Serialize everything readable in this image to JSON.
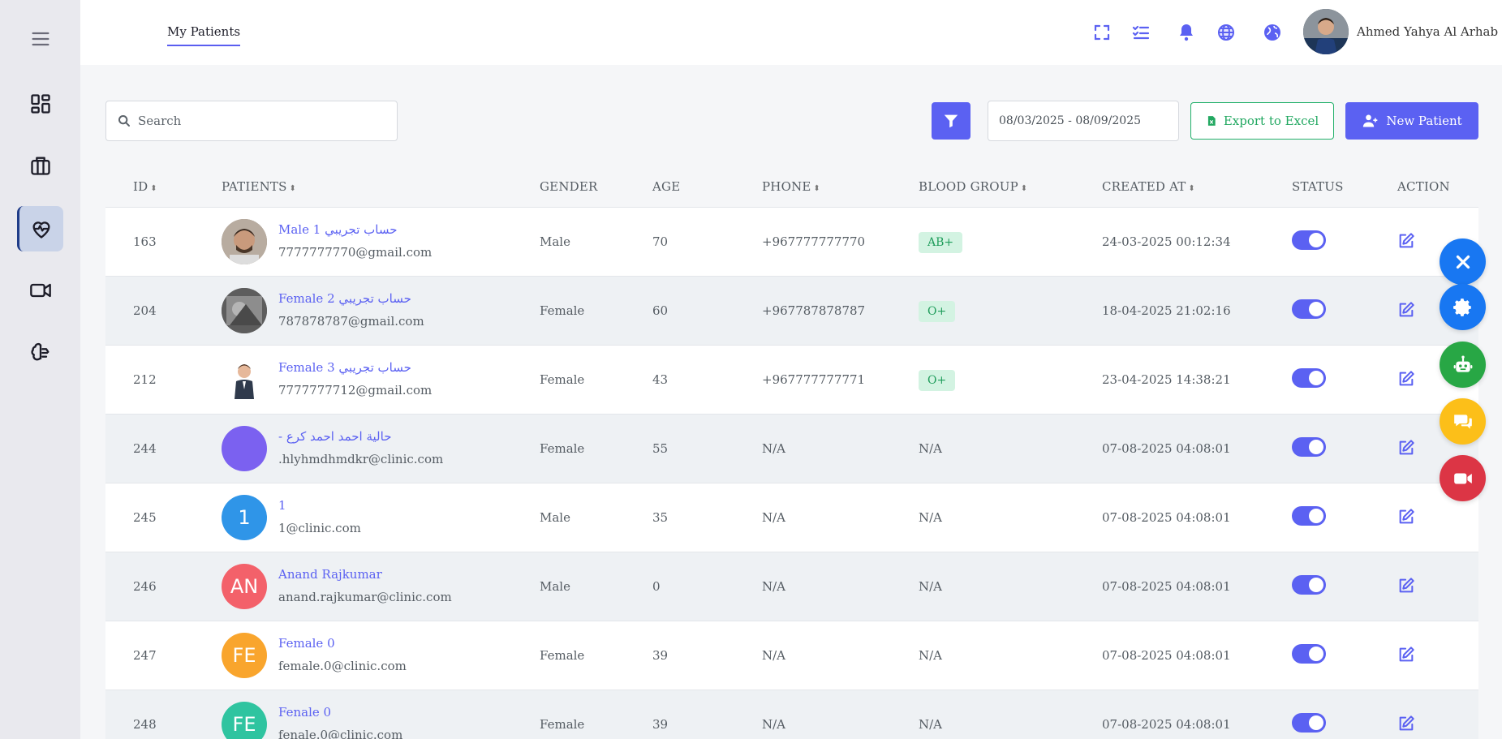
{
  "header": {
    "page_tab": "My Patients",
    "user_name": "Ahmed Yahya Al Arhab",
    "icons": [
      "fullscreen-icon",
      "task-list-icon",
      "bell-icon",
      "globe-icon",
      "earth-icon"
    ]
  },
  "sidebar": {
    "items": [
      {
        "name": "menu-icon"
      },
      {
        "name": "dashboard-icon"
      },
      {
        "name": "briefcase-icon"
      },
      {
        "name": "heart-pulse-icon",
        "active": true
      },
      {
        "name": "video-icon"
      },
      {
        "name": "brain-icon"
      }
    ]
  },
  "toolbar": {
    "search_placeholder": "Search",
    "date_range": "08/03/2025 - 08/09/2025",
    "export_label": "Export to Excel",
    "new_label": "New Patient"
  },
  "table": {
    "columns": [
      "ID",
      "PATIENTS",
      "GENDER",
      "AGE",
      "PHONE",
      "BLOOD GROUP",
      "CREATED AT",
      "STATUS",
      "ACTION"
    ],
    "rows": [
      {
        "id": "163",
        "name": "حساب تجريبي 1 Male",
        "email": "7777777770@gmail.com",
        "gender": "Male",
        "age": "70",
        "phone": "+967777777770",
        "blood": "AB+",
        "created": "24-03-2025 00:12:34",
        "avatar_type": "photo",
        "avatar_color": "#8a7a6a"
      },
      {
        "id": "204",
        "name": "حساب تجريبي 2 Female",
        "email": "787878787@gmail.com",
        "gender": "Female",
        "age": "60",
        "phone": "+967787878787",
        "blood": "O+",
        "created": "18-04-2025 21:02:16",
        "avatar_type": "photo",
        "avatar_color": "#6d6d6d"
      },
      {
        "id": "212",
        "name": "حساب تجريبي 3 Female",
        "email": "7777777712@gmail.com",
        "gender": "Female",
        "age": "43",
        "phone": "+967777777771",
        "blood": "O+",
        "created": "23-04-2025 14:38:21",
        "avatar_type": "photo",
        "avatar_color": "#ffffff"
      },
      {
        "id": "244",
        "name": "حالية احمد احمد كرع -",
        "email": ".hlyhmdhmdkr@clinic.com",
        "gender": "Female",
        "age": "55",
        "phone": "N/A",
        "blood": "N/A",
        "created": "07-08-2025 04:08:01",
        "avatar_type": "initials",
        "initials": "",
        "avatar_color": "#7b61f0"
      },
      {
        "id": "245",
        "name": "1",
        "email": "1@clinic.com",
        "gender": "Male",
        "age": "35",
        "phone": "N/A",
        "blood": "N/A",
        "created": "07-08-2025 04:08:01",
        "avatar_type": "initials",
        "initials": "1",
        "avatar_color": "#2f95e8"
      },
      {
        "id": "246",
        "name": "Anand Rajkumar",
        "email": "anand.rajkumar@clinic.com",
        "gender": "Male",
        "age": "0",
        "phone": "N/A",
        "blood": "N/A",
        "created": "07-08-2025 04:08:01",
        "avatar_type": "initials",
        "initials": "AN",
        "avatar_color": "#f3616a"
      },
      {
        "id": "247",
        "name": "Female 0",
        "email": "female.0@clinic.com",
        "gender": "Female",
        "age": "39",
        "phone": "N/A",
        "blood": "N/A",
        "created": "07-08-2025 04:08:01",
        "avatar_type": "initials",
        "initials": "FE",
        "avatar_color": "#f9a52d"
      },
      {
        "id": "248",
        "name": "Fenale 0",
        "email": "fenale.0@clinic.com",
        "gender": "Female",
        "age": "39",
        "phone": "N/A",
        "blood": "N/A",
        "created": "07-08-2025 04:08:01",
        "avatar_type": "initials",
        "initials": "FE",
        "avatar_color": "#2fc4a0"
      }
    ]
  },
  "fabs": [
    {
      "name": "close-icon",
      "color": "#1877f2"
    },
    {
      "name": "gear-icon",
      "color": "#1877f2"
    },
    {
      "name": "robot-icon",
      "color": "#28a745"
    },
    {
      "name": "chat-icon",
      "color": "#fcbf19"
    },
    {
      "name": "video-call-icon",
      "color": "#dc3545"
    }
  ],
  "colors": {
    "accent": "#5b61f2",
    "success": "#22a861"
  }
}
